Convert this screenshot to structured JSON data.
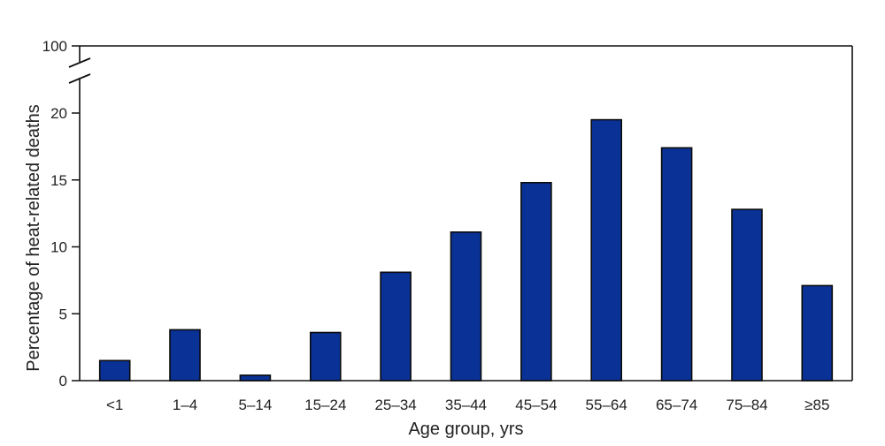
{
  "chart_data": {
    "type": "bar",
    "title": "",
    "xlabel": "Age group, yrs",
    "ylabel": "Percentage of heat-related deaths",
    "categories": [
      "<1",
      "1–4",
      "5–14",
      "15–24",
      "25–34",
      "35–44",
      "45–54",
      "55–64",
      "65–74",
      "75–84",
      "≥85"
    ],
    "values": [
      1.5,
      3.8,
      0.4,
      3.6,
      8.1,
      11.1,
      14.8,
      19.5,
      17.4,
      12.8,
      7.1
    ],
    "y_ticks": [
      0,
      5,
      10,
      15,
      20
    ],
    "y_break_label": "100",
    "ylim": [
      0,
      20
    ],
    "axis_break": true,
    "grid": false,
    "legend": "none",
    "colors": {
      "bar_fill": "#0a3296",
      "bar_stroke": "#0a0a0a",
      "axis": "#111111"
    }
  }
}
